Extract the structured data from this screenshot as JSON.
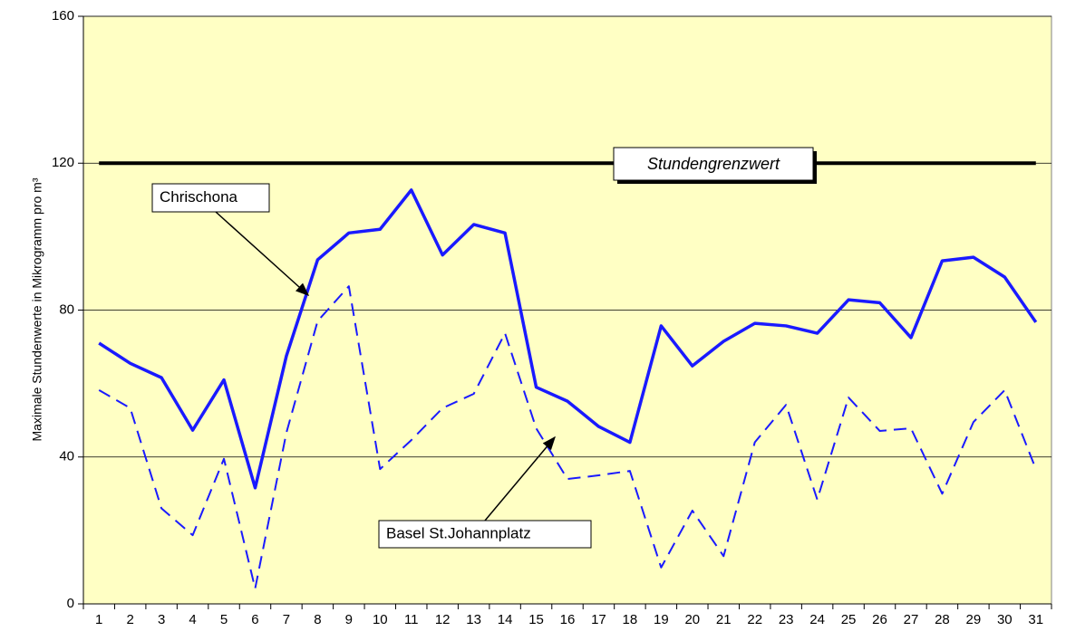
{
  "chart_data": {
    "type": "line",
    "ylabel": "Maximale Stundenwerte in Mikrogramm pro m³",
    "categories": [
      "1",
      "2",
      "3",
      "4",
      "5",
      "6",
      "7",
      "8",
      "9",
      "10",
      "11",
      "12",
      "13",
      "14",
      "15",
      "16",
      "17",
      "18",
      "19",
      "20",
      "21",
      "22",
      "23",
      "24",
      "25",
      "26",
      "27",
      "28",
      "29",
      "30",
      "31"
    ],
    "series": [
      {
        "name": "Chrischona",
        "color": "#1a1aff",
        "dash": false,
        "values": [
          71,
          65.5,
          61.6,
          47.3,
          61,
          31.6,
          67.5,
          93.7,
          101,
          102,
          112.7,
          95,
          103.3,
          101,
          59,
          55.2,
          48.3,
          44,
          75.7,
          64.8,
          71.5,
          76.4,
          75.7,
          73.7,
          82.8,
          82,
          72.5,
          93.4,
          94.4,
          89,
          76.7
        ]
      },
      {
        "name": "Basel St.Johannplatz",
        "color": "#1a1aff",
        "dash": true,
        "values": [
          58.2,
          53.3,
          26,
          18.7,
          39.5,
          4.2,
          46.6,
          77,
          86.5,
          36.7,
          44.6,
          53.3,
          57.2,
          73.7,
          47.8,
          34,
          35,
          36.2,
          9.9,
          25.4,
          13,
          44,
          54.2,
          28.4,
          56.2,
          47.1,
          47.8,
          30,
          49.5,
          58.2,
          36.7
        ]
      }
    ],
    "threshold": {
      "value": 120,
      "label": "Stundengrenzwert",
      "color": "#000000"
    },
    "ylim": [
      0,
      160
    ],
    "yticks": [
      0,
      40,
      80,
      120,
      160
    ],
    "grid": true,
    "background": "#ffffc4"
  }
}
